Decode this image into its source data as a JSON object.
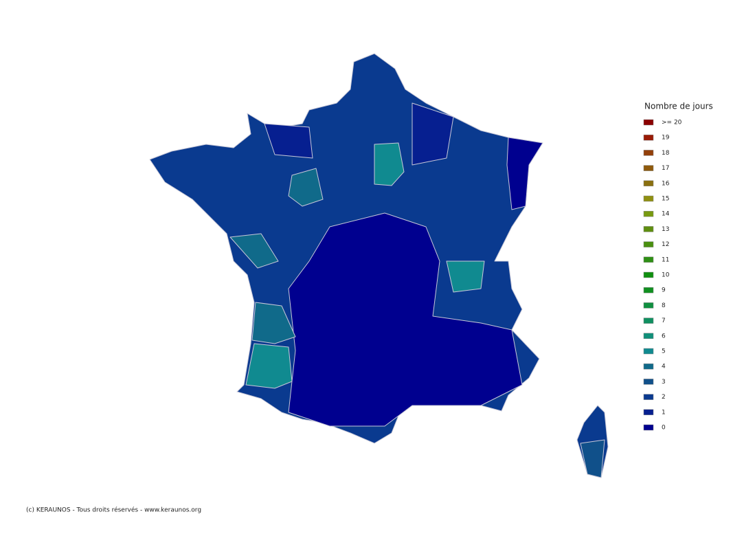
{
  "legend": {
    "title": "Nombre de jours",
    "items": [
      {
        "label": ">= 20",
        "color": "#8b0000"
      },
      {
        "label": "19",
        "color": "#9a1a05"
      },
      {
        "label": "18",
        "color": "#93400a"
      },
      {
        "label": "17",
        "color": "#8f5a0c"
      },
      {
        "label": "16",
        "color": "#8a7010"
      },
      {
        "label": "15",
        "color": "#8f9010"
      },
      {
        "label": "14",
        "color": "#789a10"
      },
      {
        "label": "13",
        "color": "#5f8f10"
      },
      {
        "label": "12",
        "color": "#4a9010"
      },
      {
        "label": "11",
        "color": "#2f9015"
      },
      {
        "label": "10",
        "color": "#109010"
      },
      {
        "label": "9",
        "color": "#109020"
      },
      {
        "label": "8",
        "color": "#109040"
      },
      {
        "label": "7",
        "color": "#109060"
      },
      {
        "label": "6",
        "color": "#10907a"
      },
      {
        "label": "5",
        "color": "#108a90"
      },
      {
        "label": "4",
        "color": "#106a8a"
      },
      {
        "label": "3",
        "color": "#10508a"
      },
      {
        "label": "2",
        "color": "#0a3a8f"
      },
      {
        "label": "1",
        "color": "#061f90"
      },
      {
        "label": "0",
        "color": "#00008f"
      }
    ]
  },
  "footer": "(c) KERAUNOS - Tous droits réservés - www.keraunos.org"
}
